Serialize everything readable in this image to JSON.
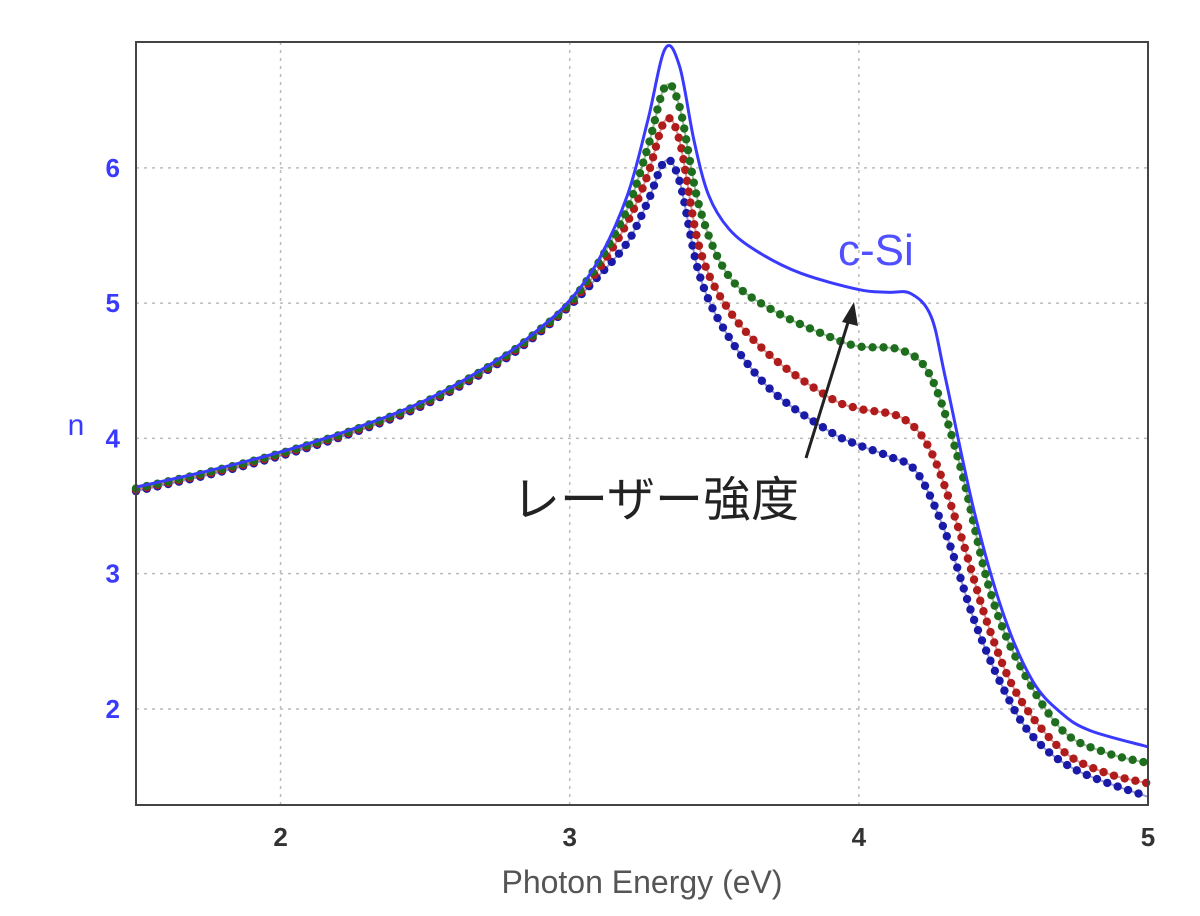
{
  "chart_data": {
    "type": "line",
    "title": "",
    "xlabel": "Photon Energy (eV)",
    "ylabel": "n",
    "xlim": [
      1.5,
      5
    ],
    "ylim": [
      1.29,
      6.93
    ],
    "xticks": [
      "2",
      "3",
      "4",
      "5"
    ],
    "yticks": [
      "2",
      "3",
      "4",
      "5",
      "6"
    ],
    "grid": true,
    "annotations": [
      {
        "text": "c-Si",
        "color": "#5050ff"
      },
      {
        "text": "レーザー強度",
        "color": "#222222",
        "arrow": true
      }
    ],
    "series": [
      {
        "name": "c-Si",
        "style": "solid",
        "color": "#3a3aff",
        "x": [
          1.5,
          1.75,
          2.0,
          2.25,
          2.5,
          2.75,
          2.9,
          3.0,
          3.1,
          3.2,
          3.27,
          3.33,
          3.38,
          3.43,
          3.48,
          3.55,
          3.65,
          3.8,
          4.0,
          4.1,
          4.18,
          4.25,
          4.3,
          4.4,
          4.5,
          4.6,
          4.7,
          4.8,
          5.0
        ],
        "y": [
          3.64,
          3.76,
          3.9,
          4.07,
          4.28,
          4.58,
          4.82,
          5.02,
          5.32,
          5.8,
          6.35,
          6.88,
          6.75,
          6.2,
          5.8,
          5.55,
          5.38,
          5.22,
          5.1,
          5.08,
          5.07,
          4.9,
          4.44,
          3.45,
          2.7,
          2.21,
          1.97,
          1.84,
          1.72
        ]
      },
      {
        "style": "dotted",
        "color": "#1e6e1e",
        "x": [
          1.5,
          1.75,
          2.0,
          2.25,
          2.5,
          2.75,
          2.9,
          3.0,
          3.1,
          3.2,
          3.27,
          3.33,
          3.38,
          3.45,
          3.55,
          3.7,
          3.9,
          4.0,
          4.15,
          4.25,
          4.35,
          4.45,
          4.55,
          4.7,
          4.85,
          5.0
        ],
        "y": [
          3.63,
          3.75,
          3.89,
          4.06,
          4.27,
          4.57,
          4.81,
          5.0,
          5.3,
          5.7,
          6.15,
          6.6,
          6.45,
          5.7,
          5.2,
          4.95,
          4.75,
          4.68,
          4.65,
          4.45,
          3.8,
          2.9,
          2.35,
          1.85,
          1.68,
          1.6
        ]
      },
      {
        "style": "dotted",
        "color": "#b01c1c",
        "x": [
          1.5,
          1.75,
          2.0,
          2.25,
          2.5,
          2.75,
          2.9,
          3.0,
          3.1,
          3.2,
          3.27,
          3.33,
          3.38,
          3.45,
          3.55,
          3.7,
          3.9,
          4.0,
          4.15,
          4.25,
          4.35,
          4.45,
          4.55,
          4.7,
          4.85,
          5.0
        ],
        "y": [
          3.62,
          3.74,
          3.88,
          4.05,
          4.26,
          4.56,
          4.8,
          4.99,
          5.25,
          5.6,
          5.95,
          6.35,
          6.2,
          5.4,
          4.95,
          4.6,
          4.3,
          4.22,
          4.15,
          3.9,
          3.3,
          2.6,
          2.1,
          1.7,
          1.53,
          1.45
        ]
      },
      {
        "style": "dotted",
        "color": "#1a1aa8",
        "x": [
          1.5,
          1.75,
          2.0,
          2.25,
          2.5,
          2.75,
          2.9,
          3.0,
          3.1,
          3.2,
          3.27,
          3.33,
          3.38,
          3.45,
          3.55,
          3.7,
          3.9,
          4.0,
          4.1,
          4.2,
          4.3,
          4.4,
          4.5,
          4.6,
          4.75,
          5.0
        ],
        "y": [
          3.61,
          3.73,
          3.87,
          4.04,
          4.25,
          4.55,
          4.79,
          4.98,
          5.2,
          5.45,
          5.75,
          6.05,
          5.9,
          5.2,
          4.75,
          4.35,
          4.05,
          3.95,
          3.87,
          3.75,
          3.3,
          2.65,
          2.15,
          1.8,
          1.55,
          1.35
        ]
      }
    ]
  }
}
